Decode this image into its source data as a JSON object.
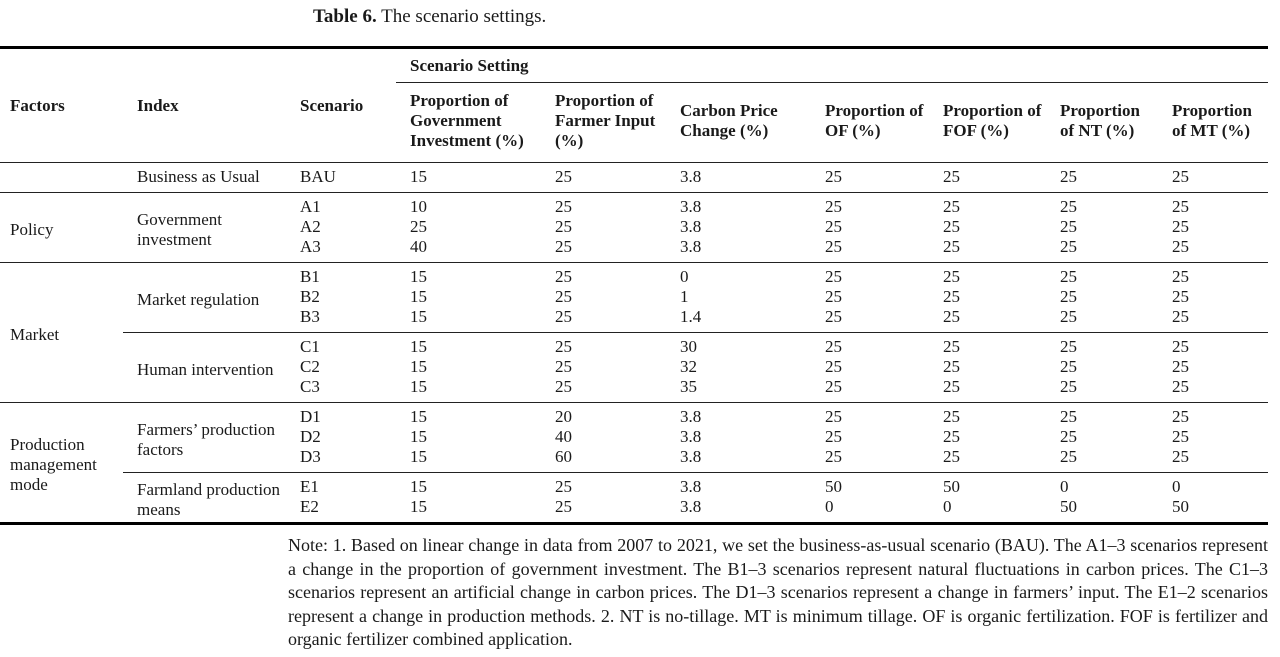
{
  "title": {
    "label": "Table 6.",
    "text": "The scenario settings."
  },
  "table": {
    "columns": [
      "Factors",
      "Index",
      "Scenario"
    ],
    "group_header": "Scenario Setting",
    "setting_columns": [
      "Proportion of Government Investment (%)",
      "Proportion of Farmer Input (%)",
      "Carbon Price Change (%)",
      "Proportion of OF (%)",
      "Proportion of FOF (%)",
      "Proportion of NT (%)",
      "Proportion of MT (%)"
    ],
    "sections": [
      {
        "factor": "",
        "groups": [
          {
            "index": "Business as Usual",
            "rows": [
              {
                "scenario": "BAU",
                "values": [
                  "15",
                  "25",
                  "3.8",
                  "25",
                  "25",
                  "25",
                  "25"
                ]
              }
            ]
          }
        ]
      },
      {
        "factor": "Policy",
        "groups": [
          {
            "index": "Government investment",
            "rows": [
              {
                "scenario": "A1",
                "values": [
                  "10",
                  "25",
                  "3.8",
                  "25",
                  "25",
                  "25",
                  "25"
                ]
              },
              {
                "scenario": "A2",
                "values": [
                  "25",
                  "25",
                  "3.8",
                  "25",
                  "25",
                  "25",
                  "25"
                ]
              },
              {
                "scenario": "A3",
                "values": [
                  "40",
                  "25",
                  "3.8",
                  "25",
                  "25",
                  "25",
                  "25"
                ]
              }
            ]
          }
        ]
      },
      {
        "factor": "Market",
        "groups": [
          {
            "index": "Market regulation",
            "rows": [
              {
                "scenario": "B1",
                "values": [
                  "15",
                  "25",
                  "0",
                  "25",
                  "25",
                  "25",
                  "25"
                ]
              },
              {
                "scenario": "B2",
                "values": [
                  "15",
                  "25",
                  "1",
                  "25",
                  "25",
                  "25",
                  "25"
                ]
              },
              {
                "scenario": "B3",
                "values": [
                  "15",
                  "25",
                  "1.4",
                  "25",
                  "25",
                  "25",
                  "25"
                ]
              }
            ]
          },
          {
            "index": "Human intervention",
            "rows": [
              {
                "scenario": "C1",
                "values": [
                  "15",
                  "25",
                  "30",
                  "25",
                  "25",
                  "25",
                  "25"
                ]
              },
              {
                "scenario": "C2",
                "values": [
                  "15",
                  "25",
                  "32",
                  "25",
                  "25",
                  "25",
                  "25"
                ]
              },
              {
                "scenario": "C3",
                "values": [
                  "15",
                  "25",
                  "35",
                  "25",
                  "25",
                  "25",
                  "25"
                ]
              }
            ]
          }
        ]
      },
      {
        "factor": "Production management mode",
        "groups": [
          {
            "index": "Farmers’ production factors",
            "rows": [
              {
                "scenario": "D1",
                "values": [
                  "15",
                  "20",
                  "3.8",
                  "25",
                  "25",
                  "25",
                  "25"
                ]
              },
              {
                "scenario": "D2",
                "values": [
                  "15",
                  "40",
                  "3.8",
                  "25",
                  "25",
                  "25",
                  "25"
                ]
              },
              {
                "scenario": "D3",
                "values": [
                  "15",
                  "60",
                  "3.8",
                  "25",
                  "25",
                  "25",
                  "25"
                ]
              }
            ]
          },
          {
            "index": "Farmland production means",
            "rows": [
              {
                "scenario": "E1",
                "values": [
                  "15",
                  "25",
                  "3.8",
                  "50",
                  "50",
                  "0",
                  "0"
                ]
              },
              {
                "scenario": "E2",
                "values": [
                  "15",
                  "25",
                  "3.8",
                  "0",
                  "0",
                  "50",
                  "50"
                ]
              }
            ]
          }
        ]
      }
    ]
  },
  "note": "Note: 1. Based on linear change in data from 2007 to 2021, we set the business-as-usual scenario (BAU). The A1–3 scenarios represent a change in the proportion of government investment. The B1–3 scenarios represent natural fluctuations in carbon prices. The C1–3 scenarios represent an artificial change in carbon prices. The D1–3 scenarios represent a change in farmers’ input. The E1–2 scenarios represent a change in production methods. 2. NT is no-tillage. MT is minimum tillage. OF is organic fertilization. FOF is fertilizer and organic fertilizer combined application."
}
